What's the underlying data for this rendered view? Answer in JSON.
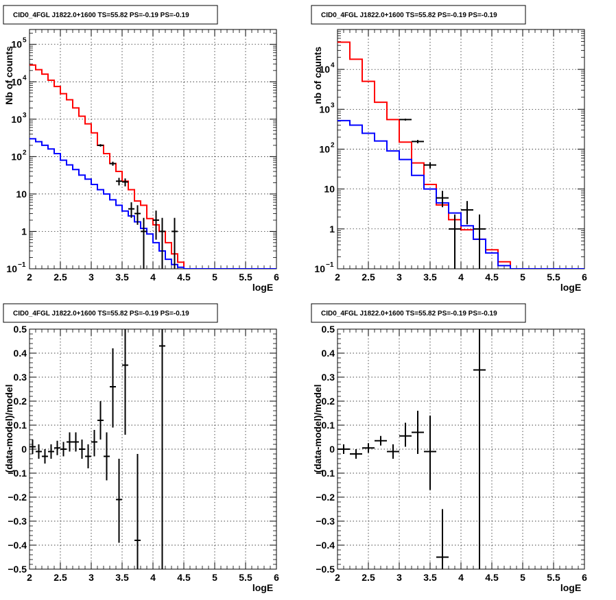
{
  "chart_data": [
    {
      "type": "line",
      "title": "CID0_4FGL J1822.0+1600 TS=55.82 PS=-0.19 PS=-0.19",
      "xlabel": "logE",
      "ylabel": "Nb of counts",
      "xlim": [
        2,
        6
      ],
      "ylim": [
        0.1,
        250000
      ],
      "yscale": "log",
      "grid": true,
      "x_ticks": [
        "2",
        "2.5",
        "3",
        "3.5",
        "4",
        "4.5",
        "5",
        "5.5",
        "6"
      ],
      "y_ticks": [
        {
          "value": 0.1,
          "label": "10",
          "exp": "−1"
        },
        {
          "value": 1,
          "label": "1",
          "exp": ""
        },
        {
          "value": 10,
          "label": "10",
          "exp": ""
        },
        {
          "value": 100,
          "label": "10",
          "exp": "2"
        },
        {
          "value": 1000,
          "label": "10",
          "exp": "3"
        },
        {
          "value": 10000,
          "label": "10",
          "exp": "4"
        },
        {
          "value": 100000,
          "label": "10",
          "exp": "5"
        }
      ],
      "series": [
        {
          "kind": "hist",
          "color": "#ff0000",
          "edges": [
            2,
            2.1,
            2.2,
            2.3,
            2.4,
            2.5,
            2.6,
            2.7,
            2.8,
            2.9,
            3.0,
            3.1,
            3.2,
            3.3,
            3.4,
            3.5,
            3.6,
            3.7,
            3.8,
            3.9,
            4.0,
            4.1,
            4.2,
            4.3,
            4.4,
            4.5,
            4.6,
            6
          ],
          "values": [
            28000,
            21000,
            16000,
            11000,
            7500,
            4800,
            3300,
            2000,
            1200,
            750,
            430,
            200,
            120,
            65,
            40,
            22,
            13,
            6.5,
            5,
            2.2,
            1.5,
            1,
            0.5,
            0.25,
            0.15,
            0.1,
            0.1
          ]
        },
        {
          "kind": "hist",
          "color": "#0000ff",
          "edges": [
            2,
            2.1,
            2.2,
            2.3,
            2.4,
            2.5,
            2.6,
            2.7,
            2.8,
            2.9,
            3.0,
            3.1,
            3.2,
            3.3,
            3.4,
            3.5,
            3.6,
            3.7,
            3.8,
            3.9,
            4.0,
            4.1,
            4.2,
            4.3,
            4.4,
            4.5,
            6
          ],
          "values": [
            300,
            250,
            200,
            160,
            120,
            80,
            60,
            45,
            32,
            25,
            18,
            13,
            10,
            7,
            5,
            3.5,
            2.6,
            1.8,
            1.2,
            0.85,
            0.5,
            0.3,
            0.18,
            0.13,
            0.11,
            0.1
          ]
        },
        {
          "kind": "points",
          "color": "#000000",
          "points": [
            {
              "x": 3.15,
              "y": 200,
              "xerr": 0.05,
              "ylo": 185,
              "yhi": 215
            },
            {
              "x": 3.35,
              "y": 65,
              "xerr": 0.05,
              "ylo": 57,
              "yhi": 73
            },
            {
              "x": 3.45,
              "y": 22,
              "xerr": 0.05,
              "ylo": 17,
              "yhi": 27
            },
            {
              "x": 3.55,
              "y": 21,
              "xerr": 0.05,
              "ylo": 16,
              "yhi": 26
            },
            {
              "x": 3.65,
              "y": 4,
              "xerr": 0.05,
              "ylo": 2.3,
              "yhi": 6
            },
            {
              "x": 3.75,
              "y": 3,
              "xerr": 0.05,
              "ylo": 1.5,
              "yhi": 5
            },
            {
              "x": 3.85,
              "y": 1,
              "xerr": 0.05,
              "ylo": 0.1,
              "yhi": 2.3
            },
            {
              "x": 4.05,
              "y": 2,
              "xerr": 0.05,
              "ylo": 0.6,
              "yhi": 3.6
            },
            {
              "x": 4.15,
              "y": 1,
              "xerr": 0.05,
              "ylo": 0.1,
              "yhi": 2.3
            },
            {
              "x": 4.35,
              "y": 1,
              "xerr": 0.05,
              "ylo": 0.1,
              "yhi": 2.3
            }
          ]
        }
      ]
    },
    {
      "type": "line",
      "title": "CID0_4FGL J1822.0+1600 TS=55.82 PS=-0.19 PS=-0.19",
      "xlabel": "logE",
      "ylabel": "nb of counts",
      "xlim": [
        2,
        6
      ],
      "ylim": [
        0.1,
        100000
      ],
      "yscale": "log",
      "grid": true,
      "x_ticks": [
        "2",
        "2.5",
        "3",
        "3.5",
        "4",
        "4.5",
        "5",
        "5.5",
        "6"
      ],
      "y_ticks": [
        {
          "value": 0.1,
          "label": "10",
          "exp": "−1"
        },
        {
          "value": 1,
          "label": "1",
          "exp": ""
        },
        {
          "value": 10,
          "label": "10",
          "exp": ""
        },
        {
          "value": 100,
          "label": "10",
          "exp": "2"
        },
        {
          "value": 1000,
          "label": "10",
          "exp": "3"
        },
        {
          "value": 10000,
          "label": "10",
          "exp": "4"
        }
      ],
      "series": [
        {
          "kind": "hist",
          "color": "#ff0000",
          "edges": [
            2,
            2.2,
            2.4,
            2.6,
            2.8,
            3.0,
            3.2,
            3.4,
            3.6,
            3.8,
            4.0,
            4.2,
            4.4,
            4.6,
            4.8,
            6
          ],
          "values": [
            48000,
            18000,
            5000,
            1500,
            550,
            150,
            45,
            13,
            4,
            1.7,
            0.95,
            0.55,
            0.3,
            0.15,
            0.1
          ]
        },
        {
          "kind": "hist",
          "color": "#0000ff",
          "edges": [
            2,
            2.2,
            2.4,
            2.6,
            2.8,
            3.0,
            3.2,
            3.4,
            3.6,
            3.8,
            4.0,
            4.2,
            4.4,
            4.6,
            4.8,
            6
          ],
          "values": [
            520,
            400,
            250,
            160,
            90,
            55,
            22,
            10,
            4.5,
            2.5,
            1.2,
            0.55,
            0.25,
            0.12,
            0.1
          ]
        },
        {
          "kind": "points",
          "color": "#000000",
          "points": [
            {
              "x": 3.1,
              "y": 550,
              "xerr": 0.1,
              "ylo": 520,
              "yhi": 580
            },
            {
              "x": 3.3,
              "y": 155,
              "xerr": 0.1,
              "ylo": 140,
              "yhi": 170
            },
            {
              "x": 3.5,
              "y": 40,
              "xerr": 0.1,
              "ylo": 33,
              "yhi": 47
            },
            {
              "x": 3.7,
              "y": 6,
              "xerr": 0.1,
              "ylo": 3.5,
              "yhi": 9
            },
            {
              "x": 3.9,
              "y": 1,
              "xerr": 0.1,
              "ylo": 0.1,
              "yhi": 2.3
            },
            {
              "x": 4.1,
              "y": 3,
              "xerr": 0.1,
              "ylo": 1.3,
              "yhi": 5
            },
            {
              "x": 4.3,
              "y": 1,
              "xerr": 0.1,
              "ylo": 0.1,
              "yhi": 2.3
            }
          ]
        }
      ]
    },
    {
      "type": "scatter",
      "title": "CID0_4FGL J1822.0+1600 TS=55.82 PS=-0.19 PS=-0.19",
      "xlabel": "logE",
      "ylabel": "(data-model)/model",
      "xlim": [
        2,
        6
      ],
      "ylim": [
        -0.5,
        0.5
      ],
      "grid": true,
      "x_ticks": [
        "2",
        "2.5",
        "3",
        "3.5",
        "4",
        "4.5",
        "5",
        "5.5",
        "6"
      ],
      "y_ticks": [
        {
          "value": -0.5,
          "label": "−0.5"
        },
        {
          "value": -0.4,
          "label": "−0.4"
        },
        {
          "value": -0.3,
          "label": "−0.3"
        },
        {
          "value": -0.2,
          "label": "−0.2"
        },
        {
          "value": -0.1,
          "label": "−0.1"
        },
        {
          "value": 0,
          "label": "0"
        },
        {
          "value": 0.1,
          "label": "0.1"
        },
        {
          "value": 0.2,
          "label": "0.2"
        },
        {
          "value": 0.3,
          "label": "0.3"
        },
        {
          "value": 0.4,
          "label": "0.4"
        },
        {
          "value": 0.5,
          "label": "0.5"
        }
      ],
      "series": [
        {
          "kind": "points",
          "color": "#000000",
          "points": [
            {
              "x": 2.05,
              "y": 0.01,
              "xerr": 0.05,
              "ylo": -0.02,
              "yhi": 0.04
            },
            {
              "x": 2.15,
              "y": -0.01,
              "xerr": 0.05,
              "ylo": -0.04,
              "yhi": 0.02
            },
            {
              "x": 2.25,
              "y": -0.03,
              "xerr": 0.05,
              "ylo": -0.06,
              "yhi": 0.0
            },
            {
              "x": 2.35,
              "y": -0.01,
              "xerr": 0.05,
              "ylo": -0.04,
              "yhi": 0.02
            },
            {
              "x": 2.45,
              "y": 0.005,
              "xerr": 0.05,
              "ylo": -0.025,
              "yhi": 0.035
            },
            {
              "x": 2.55,
              "y": 0.0,
              "xerr": 0.05,
              "ylo": -0.03,
              "yhi": 0.03
            },
            {
              "x": 2.65,
              "y": 0.03,
              "xerr": 0.05,
              "ylo": -0.01,
              "yhi": 0.07
            },
            {
              "x": 2.75,
              "y": 0.03,
              "xerr": 0.05,
              "ylo": -0.01,
              "yhi": 0.07
            },
            {
              "x": 2.85,
              "y": 0.0,
              "xerr": 0.05,
              "ylo": -0.04,
              "yhi": 0.04
            },
            {
              "x": 2.95,
              "y": -0.03,
              "xerr": 0.05,
              "ylo": -0.08,
              "yhi": 0.02
            },
            {
              "x": 3.05,
              "y": 0.03,
              "xerr": 0.05,
              "ylo": -0.03,
              "yhi": 0.08
            },
            {
              "x": 3.15,
              "y": 0.12,
              "xerr": 0.05,
              "ylo": 0.04,
              "yhi": 0.2
            },
            {
              "x": 3.25,
              "y": -0.03,
              "xerr": 0.05,
              "ylo": -0.13,
              "yhi": 0.07
            },
            {
              "x": 3.35,
              "y": 0.26,
              "xerr": 0.05,
              "ylo": 0.09,
              "yhi": 0.42
            },
            {
              "x": 3.45,
              "y": -0.21,
              "xerr": 0.05,
              "ylo": -0.39,
              "yhi": -0.04
            },
            {
              "x": 3.55,
              "y": 0.35,
              "xerr": 0.05,
              "ylo": 0.06,
              "yhi": 0.5
            },
            {
              "x": 3.75,
              "y": -0.38,
              "xerr": 0.05,
              "ylo": -0.5,
              "yhi": -0.02
            },
            {
              "x": 4.15,
              "y": 0.43,
              "xerr": 0.05,
              "ylo": -0.5,
              "yhi": 0.5
            }
          ]
        }
      ]
    },
    {
      "type": "scatter",
      "title": "CID0_4FGL J1822.0+1600 TS=55.82 PS=-0.19 PS=-0.19",
      "xlabel": "logE",
      "ylabel": "(data-model)/model",
      "xlim": [
        2,
        6
      ],
      "ylim": [
        -0.5,
        0.5
      ],
      "grid": true,
      "x_ticks": [
        "2",
        "2.5",
        "3",
        "3.5",
        "4",
        "4.5",
        "5",
        "5.5",
        "6"
      ],
      "y_ticks": [
        {
          "value": -0.5,
          "label": "−0.5"
        },
        {
          "value": -0.4,
          "label": "−0.4"
        },
        {
          "value": -0.3,
          "label": "−0.3"
        },
        {
          "value": -0.2,
          "label": "−0.2"
        },
        {
          "value": -0.1,
          "label": "−0.1"
        },
        {
          "value": 0,
          "label": "0"
        },
        {
          "value": 0.1,
          "label": "0.1"
        },
        {
          "value": 0.2,
          "label": "0.2"
        },
        {
          "value": 0.3,
          "label": "0.3"
        },
        {
          "value": 0.4,
          "label": "0.4"
        },
        {
          "value": 0.5,
          "label": "0.5"
        }
      ],
      "series": [
        {
          "kind": "points",
          "color": "#000000",
          "points": [
            {
              "x": 2.1,
              "y": 0.0,
              "xerr": 0.1,
              "ylo": -0.02,
              "yhi": 0.02
            },
            {
              "x": 2.3,
              "y": -0.02,
              "xerr": 0.1,
              "ylo": -0.04,
              "yhi": 0.0
            },
            {
              "x": 2.5,
              "y": 0.005,
              "xerr": 0.1,
              "ylo": -0.015,
              "yhi": 0.025
            },
            {
              "x": 2.7,
              "y": 0.035,
              "xerr": 0.1,
              "ylo": 0.015,
              "yhi": 0.055
            },
            {
              "x": 2.9,
              "y": -0.01,
              "xerr": 0.1,
              "ylo": -0.04,
              "yhi": 0.02
            },
            {
              "x": 3.1,
              "y": 0.055,
              "xerr": 0.1,
              "ylo": 0.01,
              "yhi": 0.11
            },
            {
              "x": 3.3,
              "y": 0.07,
              "xerr": 0.1,
              "ylo": -0.02,
              "yhi": 0.16
            },
            {
              "x": 3.5,
              "y": -0.01,
              "xerr": 0.1,
              "ylo": -0.17,
              "yhi": 0.14
            },
            {
              "x": 3.7,
              "y": -0.45,
              "xerr": 0.1,
              "ylo": -0.5,
              "yhi": -0.25
            },
            {
              "x": 4.3,
              "y": 0.33,
              "xerr": 0.1,
              "ylo": -0.5,
              "yhi": 0.5
            }
          ]
        }
      ]
    }
  ]
}
